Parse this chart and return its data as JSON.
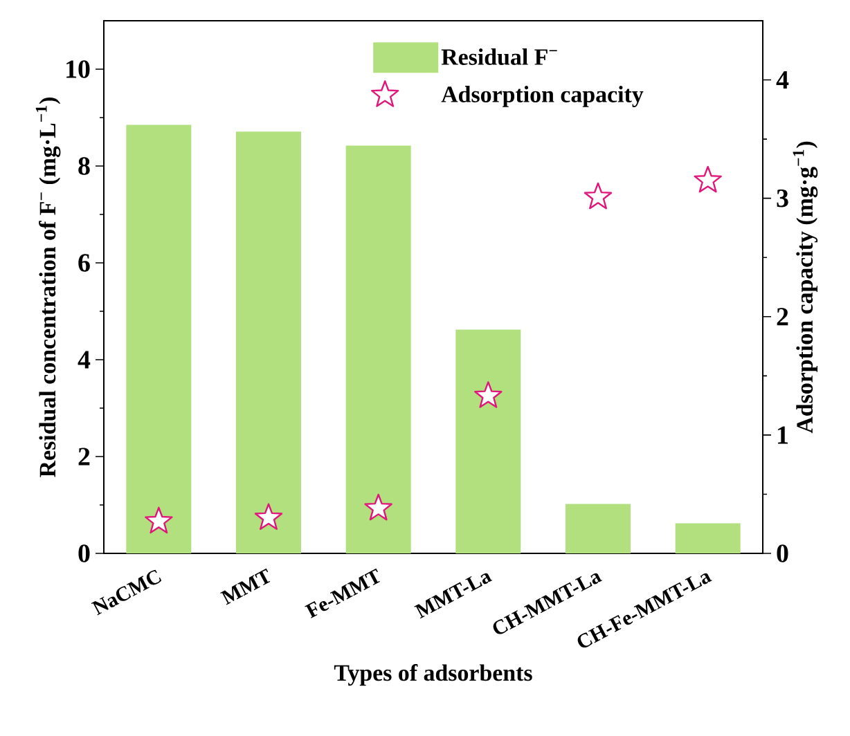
{
  "chart_data": {
    "type": "bar",
    "xlabel": "Types of adsorbents",
    "ylabel": "Residual concentration of F$^{−}$ (mg·L$^{−1}$)",
    "y2label": "Adsorption capacity (mg·g$^{−1}$)",
    "categories": [
      "NaCMC",
      "MMT",
      "Fe-MMT",
      "MMT-La",
      "CH-MMT-La",
      "CH-Fe-MMT-La"
    ],
    "series": [
      {
        "name": "Residual F$^{−}$",
        "color": "#b2e07e",
        "values": [
          8.85,
          8.71,
          8.42,
          4.62,
          1.02,
          0.62
        ]
      },
      {
        "name": "Adsorption capacity",
        "type": "scatter",
        "axis": "y2",
        "marker": "star",
        "color": "#e0167a",
        "values": [
          0.27,
          0.3,
          0.38,
          1.33,
          3.01,
          3.15
        ]
      }
    ],
    "ylim": [
      0,
      11
    ],
    "yticks": [
      0,
      2,
      4,
      6,
      8,
      10
    ],
    "y2lim": [
      0,
      4.5
    ],
    "y2ticks": [
      0,
      1,
      2,
      3,
      4
    ],
    "legend": "top"
  }
}
